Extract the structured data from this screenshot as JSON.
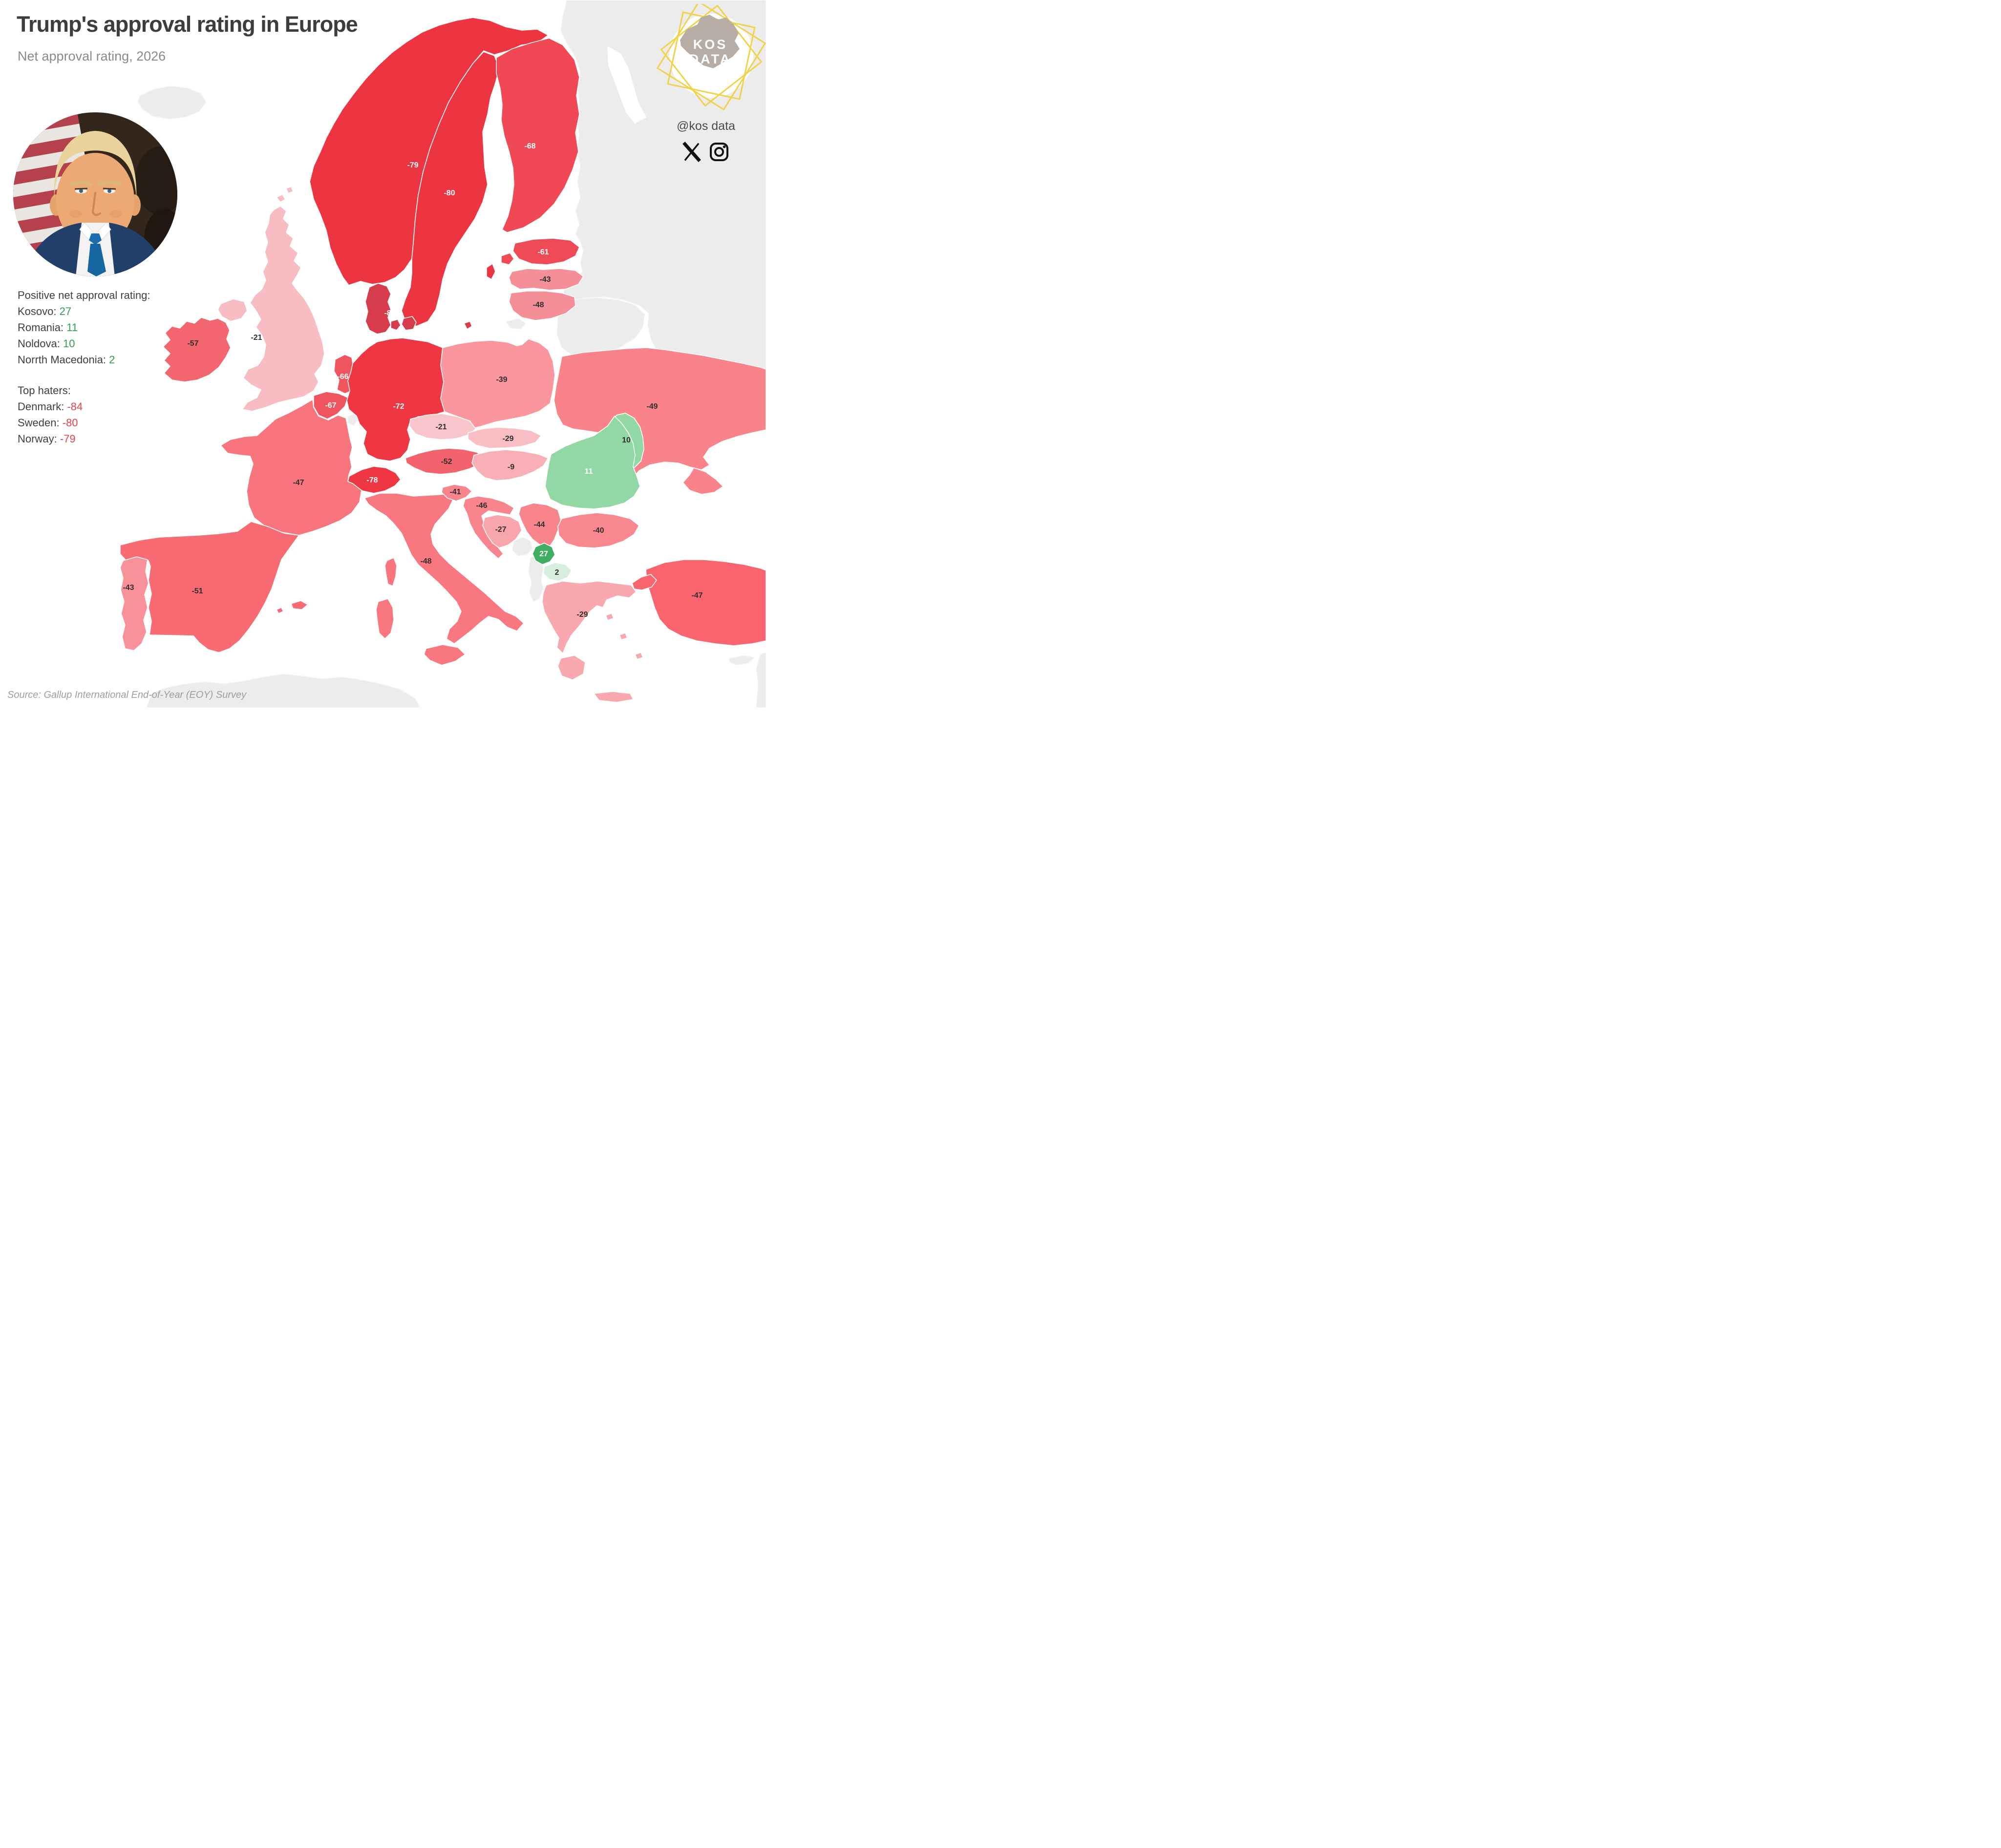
{
  "header": {
    "title": "Trump's approval rating in Europe",
    "subtitle": "Net approval rating, 2026"
  },
  "branding": {
    "logo_line1": "KOS",
    "logo_line2": "DATA",
    "handle": "@kos data",
    "icons": [
      "x-icon",
      "instagram-icon"
    ],
    "logo_accent_color": "#f1d24b",
    "logo_map_color": "#b7ada5"
  },
  "annotations": {
    "separator": ": ",
    "positive": {
      "heading": "Positive net approval rating:",
      "value_color": "#2f9e52",
      "items": [
        {
          "label": "Kosovo",
          "value": "27"
        },
        {
          "label": "Romania",
          "value": "11"
        },
        {
          "label": "Noldova",
          "value": "10"
        },
        {
          "label": "Norrth Macedonia",
          "value": "2"
        }
      ]
    },
    "haters": {
      "heading": "Top haters:",
      "value_color": "#e8424e",
      "items": [
        {
          "label": "Denmark",
          "value": "-84"
        },
        {
          "label": "Sweden",
          "value": "-80"
        },
        {
          "label": "Norway",
          "value": "-79"
        }
      ]
    }
  },
  "source": {
    "text": "Source: Gallup International End-of-Year (EOY) Survey"
  },
  "chart_data": {
    "type": "choropleth",
    "region": "Europe",
    "title": "Trump's approval rating in Europe",
    "subtitle": "Net approval rating, 2026",
    "metric": "Net approval rating, 2026",
    "source": "Gallup International End-of-Year (EOY) Survey",
    "no_data_color": "#ececec",
    "sea_color": "#ffffff",
    "countries": [
      {
        "name": "Norway",
        "code": "NO",
        "value": -79,
        "fill": "#ed3542",
        "label": "light"
      },
      {
        "name": "Sweden",
        "code": "SE",
        "value": -80,
        "fill": "#ed3542",
        "label": "light"
      },
      {
        "name": "Finland",
        "code": "FI",
        "value": -68,
        "fill": "#f04955",
        "label": "light"
      },
      {
        "name": "Denmark",
        "code": "DK",
        "value": -84,
        "fill": "#d63c4c",
        "label": "light"
      },
      {
        "name": "Estonia",
        "code": "EE",
        "value": -61,
        "fill": "#ef4b57",
        "label": "light"
      },
      {
        "name": "Latvia",
        "code": "LV",
        "value": -43,
        "fill": "#f58f97",
        "label": "dark"
      },
      {
        "name": "Lithuania",
        "code": "LT",
        "value": -48,
        "fill": "#f58f97",
        "label": "dark"
      },
      {
        "name": "United Kingdom",
        "code": "GB",
        "value": -21,
        "fill": "#f8bdc2",
        "label": "dark"
      },
      {
        "name": "Ireland",
        "code": "IE",
        "value": -57,
        "fill": "#f4666f",
        "label": "dark"
      },
      {
        "name": "Netherlands",
        "code": "NL",
        "value": -66,
        "fill": "#f0555f",
        "label": "light"
      },
      {
        "name": "Belgium",
        "code": "BE",
        "value": -67,
        "fill": "#f0555f",
        "label": "light"
      },
      {
        "name": "Germany",
        "code": "DE",
        "value": -72,
        "fill": "#ee3743",
        "label": "light"
      },
      {
        "name": "Poland",
        "code": "PL",
        "value": -39,
        "fill": "#f9969e",
        "label": "dark"
      },
      {
        "name": "Czechia",
        "code": "CZ",
        "value": -21,
        "fill": "#f8c5ca",
        "label": "dark"
      },
      {
        "name": "Slovakia",
        "code": "SK",
        "value": -29,
        "fill": "#f8bec4",
        "label": "dark"
      },
      {
        "name": "Hungary",
        "code": "HU",
        "value": -9,
        "fill": "#f8b0b6",
        "label": "dark"
      },
      {
        "name": "Austria",
        "code": "AT",
        "value": -52,
        "fill": "#f2636d",
        "label": "dark"
      },
      {
        "name": "Switzerland",
        "code": "CH",
        "value": -78,
        "fill": "#ee3743",
        "label": "light"
      },
      {
        "name": "France",
        "code": "FR",
        "value": -47,
        "fill": "#f9757d",
        "label": "dark"
      },
      {
        "name": "Spain",
        "code": "ES",
        "value": -51,
        "fill": "#f96b73",
        "label": "dark"
      },
      {
        "name": "Portugal",
        "code": "PT",
        "value": -43,
        "fill": "#f89199",
        "label": "dark"
      },
      {
        "name": "Italy",
        "code": "IT",
        "value": -48,
        "fill": "#f9777f",
        "label": "dark"
      },
      {
        "name": "Slovenia",
        "code": "SI",
        "value": -41,
        "fill": "#f8848c",
        "label": "dark"
      },
      {
        "name": "Croatia",
        "code": "HR",
        "value": -46,
        "fill": "#f8848c",
        "label": "dark"
      },
      {
        "name": "Bosnia and Herzegovina",
        "code": "BA",
        "value": -27,
        "fill": "#f8a6ac",
        "label": "dark"
      },
      {
        "name": "Serbia",
        "code": "RS",
        "value": -44,
        "fill": "#f8848c",
        "label": "dark"
      },
      {
        "name": "Kosovo",
        "code": "XK",
        "value": 27,
        "fill": "#3fae63",
        "label": "light"
      },
      {
        "name": "North Macedonia",
        "code": "MK",
        "value": 2,
        "fill": "#d8eedd",
        "label": "dark"
      },
      {
        "name": "Greece",
        "code": "GR",
        "value": -29,
        "fill": "#f8a8ae",
        "label": "dark"
      },
      {
        "name": "Bulgaria",
        "code": "BG",
        "value": -40,
        "fill": "#f8878f",
        "label": "dark"
      },
      {
        "name": "Romania",
        "code": "RO",
        "value": 11,
        "fill": "#92d8a5",
        "label": "light"
      },
      {
        "name": "Moldova",
        "code": "MD",
        "value": 10,
        "fill": "#92d8a5",
        "label": "dark"
      },
      {
        "name": "Ukraine",
        "code": "UA",
        "value": -49,
        "fill": "#fa828a",
        "label": "dark"
      },
      {
        "name": "Turkey",
        "code": "TR",
        "value": -47,
        "fill": "#f9646e",
        "label": "dark"
      }
    ],
    "no_data": [
      "Iceland",
      "Russia",
      "Belarus",
      "Kaliningrad",
      "Luxembourg",
      "Isle of Man",
      "Montenegro",
      "Albania",
      "Cyprus",
      "North Africa"
    ]
  }
}
